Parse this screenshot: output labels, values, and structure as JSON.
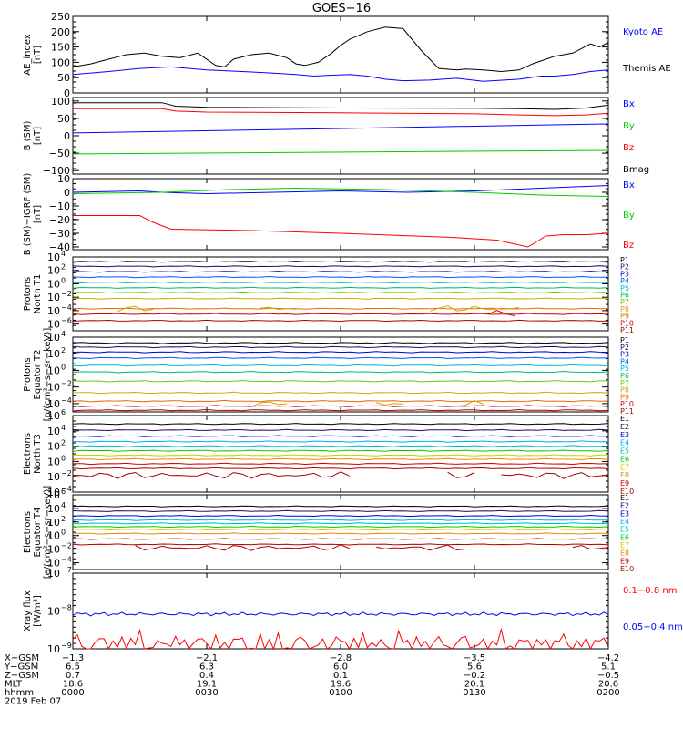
{
  "title": "GOES−16",
  "chart_data": [
    {
      "type": "line",
      "ylabel": [
        "AE_index",
        "[nT]"
      ],
      "ylim": [
        0,
        250
      ],
      "ticks": [
        "0",
        "50",
        "100",
        "150",
        "200",
        "250"
      ],
      "tick_values": [
        0,
        50,
        100,
        150,
        200,
        250
      ],
      "series": [
        {
          "name": "Kyoto AE",
          "color": "#0000ff",
          "x": [
            0,
            8,
            15,
            22,
            30,
            38,
            45,
            50,
            54,
            58,
            62,
            66,
            70,
            74,
            80,
            86,
            92,
            100,
            105,
            108,
            112,
            116,
            120
          ],
          "values": [
            60,
            70,
            80,
            85,
            75,
            70,
            65,
            60,
            55,
            58,
            60,
            55,
            45,
            40,
            42,
            48,
            38,
            45,
            55,
            55,
            60,
            70,
            75
          ]
        },
        {
          "name": "Themis AE",
          "color": "#000000",
          "x": [
            0,
            4,
            8,
            12,
            16,
            20,
            24,
            28,
            32,
            34,
            36,
            40,
            44,
            48,
            50,
            52,
            55,
            58,
            60,
            62,
            66,
            70,
            74,
            78,
            82,
            86,
            88,
            92,
            96,
            100,
            103,
            106,
            108,
            110,
            112,
            114,
            116,
            118,
            120
          ],
          "values": [
            85,
            95,
            110,
            125,
            130,
            120,
            115,
            130,
            90,
            85,
            110,
            125,
            130,
            115,
            95,
            90,
            100,
            130,
            155,
            175,
            200,
            215,
            210,
            140,
            80,
            75,
            78,
            75,
            70,
            75,
            95,
            110,
            120,
            125,
            130,
            145,
            160,
            150,
            165
          ]
        }
      ]
    },
    {
      "type": "line",
      "ylabel": [
        "B (SM)",
        "[nT]"
      ],
      "ylim": [
        -110,
        110
      ],
      "ticks": [
        "100",
        "50",
        "0",
        "−50",
        "−100"
      ],
      "tick_values": [
        100,
        50,
        0,
        -50,
        -100
      ],
      "series": [
        {
          "name": "Bx",
          "color": "#0000ff",
          "x": [
            0,
            120
          ],
          "values": [
            8,
            34
          ]
        },
        {
          "name": "By",
          "color": "#00cc00",
          "x": [
            0,
            120
          ],
          "values": [
            -52,
            -42
          ]
        },
        {
          "name": "Bz",
          "color": "#ff0000",
          "x": [
            0,
            20,
            23,
            30,
            60,
            90,
            100,
            108,
            115,
            120
          ],
          "values": [
            78,
            78,
            71,
            68,
            66,
            63,
            60,
            58,
            60,
            65
          ]
        },
        {
          "name": "Bmag",
          "color": "#000000",
          "x": [
            0,
            20,
            23,
            30,
            60,
            90,
            100,
            108,
            115,
            120
          ],
          "values": [
            95,
            95,
            85,
            82,
            80,
            79,
            78,
            76,
            80,
            88
          ]
        }
      ]
    },
    {
      "type": "line",
      "ylabel": [
        "B (SM)−IGRF (SM)",
        "[nT]"
      ],
      "ylim": [
        -42,
        10
      ],
      "ticks": [
        "10",
        "0",
        "−10",
        "−20",
        "−30",
        "−40"
      ],
      "tick_values": [
        10,
        0,
        -10,
        -20,
        -30,
        -40
      ],
      "series": [
        {
          "name": "Bx",
          "color": "#0000ff",
          "x": [
            0,
            15,
            20,
            30,
            45,
            60,
            75,
            90,
            105,
            120
          ],
          "values": [
            0,
            1,
            0,
            -1,
            0,
            1,
            0,
            1,
            3,
            5
          ]
        },
        {
          "name": "By",
          "color": "#00cc00",
          "x": [
            0,
            20,
            35,
            50,
            70,
            90,
            105,
            120
          ],
          "values": [
            -1,
            0,
            2,
            3,
            2,
            0,
            -2,
            -3
          ]
        },
        {
          "name": "Bz",
          "color": "#ff0000",
          "x": [
            0,
            15,
            18,
            22,
            40,
            60,
            85,
            95,
            102,
            104,
            106,
            110,
            115,
            120
          ],
          "values": [
            -17,
            -17,
            -22,
            -27,
            -28,
            -30,
            -33,
            -35,
            -40,
            -36,
            -32,
            -31,
            -31,
            -30
          ]
        }
      ]
    },
    {
      "type": "line",
      "ylabel": [
        "Protons",
        "North T1"
      ],
      "ylog": true,
      "ylim_exp": [
        -7,
        4
      ],
      "tick_exps": [
        4,
        2,
        0,
        -2,
        -4,
        -6
      ],
      "series_labels": [
        "P1",
        "P2",
        "P3",
        "P4",
        "P5",
        "P6",
        "P7",
        "P8",
        "P9",
        "P10",
        "P11"
      ],
      "series_colors": [
        "#000000",
        "#330066",
        "#0000cc",
        "#0055ff",
        "#00bbcc",
        "#00bb66",
        "#66cc00",
        "#ccaa00",
        "#ee6600",
        "#cc0000",
        "#aa0000"
      ],
      "series_levels": [
        3.3,
        2.6,
        1.8,
        1.0,
        0.2,
        -0.6,
        -1.3,
        -2.2,
        -3.7,
        -4.5,
        -5.5
      ],
      "segments": [
        {
          "color": "#ccaa00",
          "x": [
            [
              10,
              18
            ],
            [
              42,
              50
            ],
            [
              80,
              100
            ]
          ],
          "level": -3.7
        },
        {
          "color": "#cc0000",
          "x": [
            [
              93,
              99
            ]
          ],
          "level": -4.4
        }
      ]
    },
    {
      "type": "line",
      "ylabel": [
        "Protons",
        "Equator T2",
        "[p/(cm²−s−sr−keV)]"
      ],
      "ylog": true,
      "ylim_exp": [
        -5,
        4
      ],
      "tick_exps": [
        4,
        2,
        0,
        -2,
        -4
      ],
      "series_labels": [
        "P1",
        "P2",
        "P3",
        "P4",
        "P5",
        "P6",
        "P7",
        "P8",
        "P9",
        "P10",
        "P11"
      ],
      "series_colors": [
        "#000000",
        "#330066",
        "#0000cc",
        "#0055ff",
        "#00bbcc",
        "#00bb66",
        "#66cc00",
        "#ccaa00",
        "#ee6600",
        "#cc0000",
        "#aa0000"
      ],
      "series_levels": [
        3.3,
        2.8,
        2.2,
        1.5,
        0.6,
        -0.2,
        -1.3,
        -2.7,
        -3.7,
        -4.3,
        -4.8
      ],
      "segments": [
        {
          "color": "#ccaa00",
          "x": [
            [
              40,
              48
            ],
            [
              68,
              74
            ],
            [
              86,
              92
            ]
          ],
          "level": -4.0
        }
      ]
    },
    {
      "type": "line",
      "ylabel": [
        "Electrons",
        "North T3"
      ],
      "ylog": true,
      "ylim_exp": [
        -4,
        6
      ],
      "tick_exps": [
        6,
        4,
        2,
        0,
        -2,
        -4
      ],
      "series_labels": [
        "E1",
        "E2",
        "E3",
        "E4",
        "E5",
        "E6",
        "E7",
        "E8",
        "E9",
        "E10"
      ],
      "series_colors": [
        "#000000",
        "#330066",
        "#0000cc",
        "#00aaff",
        "#00bbbb",
        "#00cc00",
        "#cccc00",
        "#ee8800",
        "#cc0000",
        "#aa0000"
      ],
      "series_levels": [
        4.9,
        4.1,
        3.3,
        2.6,
        2.0,
        1.4,
        0.8,
        0.3,
        -0.3,
        -0.9
      ],
      "segments": [
        {
          "color": "#aa0000",
          "x": [
            [
              0,
              62
            ],
            [
              84,
              90
            ],
            [
              96,
              120
            ]
          ],
          "level": -1.8
        }
      ]
    },
    {
      "type": "line",
      "ylabel": [
        "Electrons",
        "Equator T4",
        "[e/(cm²−s−sr−keV)]"
      ],
      "ylog": true,
      "ylim_exp": [
        -5,
        6
      ],
      "tick_exps": [
        6,
        4,
        2,
        0,
        -2,
        -4
      ],
      "series_labels": [
        "E1",
        "E2",
        "E3",
        "E4",
        "E5",
        "E6",
        "E7",
        "E8",
        "E9",
        "E10"
      ],
      "series_colors": [
        "#000000",
        "#330066",
        "#0000cc",
        "#00aaff",
        "#00bbbb",
        "#00cc00",
        "#cccc00",
        "#ee8800",
        "#cc0000",
        "#aa0000"
      ],
      "series_levels": [
        4.3,
        3.6,
        2.9,
        2.3,
        1.8,
        1.3,
        0.9,
        0.3,
        -0.5,
        -1.3
      ],
      "segments": [
        {
          "color": "#aa0000",
          "x": [
            [
              14,
              62
            ],
            [
              68,
              88
            ],
            [
              112,
              120
            ]
          ],
          "level": -1.8
        }
      ]
    },
    {
      "type": "line",
      "ylabel": [
        "Xray flux",
        "[W/m²]"
      ],
      "ylog": true,
      "ylim_exp": [
        -9,
        -7
      ],
      "tick_exps": [
        -7,
        -8,
        -9
      ],
      "series": [
        {
          "name": "0.1−0.8 nm",
          "color": "#ff0000",
          "level": -8.75
        },
        {
          "name": "0.05−0.4 nm",
          "color": "#0000ff",
          "level": -8.08
        }
      ]
    }
  ],
  "x_axis": {
    "row_labels": [
      "X−GSM",
      "Y−GSM",
      "Z−GSM",
      "MLT",
      "hhmm",
      "2019 Feb 07"
    ],
    "columns": [
      [
        "−1.3",
        "6.5",
        "0.7",
        "18.6",
        "0000"
      ],
      [
        "−2.1",
        "6.3",
        "0.4",
        "19.1",
        "0030"
      ],
      [
        "−2.8",
        "6.0",
        "0.1",
        "19.6",
        "0100"
      ],
      [
        "−3.5",
        "5.6",
        "−0.2",
        "20.1",
        "0130"
      ],
      [
        "−4.2",
        "5.1",
        "−0.5",
        "20.6",
        "0200"
      ]
    ],
    "ticks_minutes": [
      0,
      30,
      60,
      90,
      120
    ]
  }
}
